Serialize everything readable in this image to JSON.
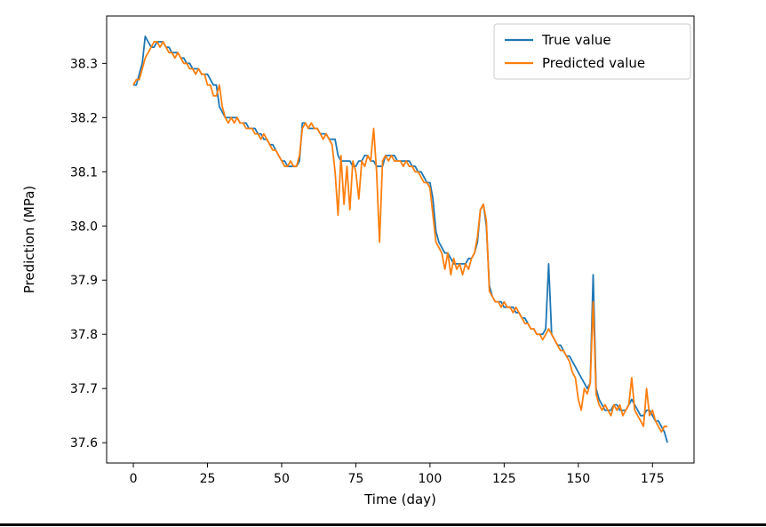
{
  "figure": {
    "background": "#ffffff",
    "xlabel": "Time (day)",
    "ylabel": "Prediction (MPa)"
  },
  "chart_data": {
    "type": "line",
    "title": "",
    "xlabel": "Time (day)",
    "ylabel": "Prediction (MPa)",
    "xlim": [
      -9,
      189
    ],
    "ylim": [
      37.5625,
      38.3875
    ],
    "xticks": [
      0,
      25,
      50,
      75,
      100,
      125,
      150,
      175
    ],
    "yticks": [
      37.6,
      37.7,
      37.8,
      37.9,
      38.0,
      38.1,
      38.2,
      38.3
    ],
    "grid": false,
    "legend_position": "upper right",
    "x": [
      0,
      1,
      2,
      3,
      4,
      5,
      6,
      7,
      8,
      9,
      10,
      11,
      12,
      13,
      14,
      15,
      16,
      17,
      18,
      19,
      20,
      21,
      22,
      23,
      24,
      25,
      26,
      27,
      28,
      29,
      30,
      31,
      32,
      33,
      34,
      35,
      36,
      37,
      38,
      39,
      40,
      41,
      42,
      43,
      44,
      45,
      46,
      47,
      48,
      49,
      50,
      51,
      52,
      53,
      54,
      55,
      56,
      57,
      58,
      59,
      60,
      61,
      62,
      63,
      64,
      65,
      66,
      67,
      68,
      69,
      70,
      71,
      72,
      73,
      74,
      75,
      76,
      77,
      78,
      79,
      80,
      81,
      82,
      83,
      84,
      85,
      86,
      87,
      88,
      89,
      90,
      91,
      92,
      93,
      94,
      95,
      96,
      97,
      98,
      99,
      100,
      101,
      102,
      103,
      104,
      105,
      106,
      107,
      108,
      109,
      110,
      111,
      112,
      113,
      114,
      115,
      116,
      117,
      118,
      119,
      120,
      121,
      122,
      123,
      124,
      125,
      126,
      127,
      128,
      129,
      130,
      131,
      132,
      133,
      134,
      135,
      136,
      137,
      138,
      139,
      140,
      141,
      142,
      143,
      144,
      145,
      146,
      147,
      148,
      149,
      150,
      151,
      152,
      153,
      154,
      155,
      156,
      157,
      158,
      159,
      160,
      161,
      162,
      163,
      164,
      165,
      166,
      167,
      168,
      169,
      170,
      171,
      172,
      173,
      174,
      175,
      176,
      177,
      178,
      179,
      180
    ],
    "series": [
      {
        "name": "True value",
        "color": "#1f77b4",
        "values": [
          38.26,
          38.26,
          38.28,
          38.3,
          38.35,
          38.34,
          38.33,
          38.33,
          38.34,
          38.34,
          38.34,
          38.33,
          38.33,
          38.32,
          38.32,
          38.32,
          38.31,
          38.31,
          38.3,
          38.3,
          38.29,
          38.29,
          38.29,
          38.28,
          38.28,
          38.28,
          38.27,
          38.26,
          38.26,
          38.22,
          38.21,
          38.2,
          38.2,
          38.2,
          38.2,
          38.2,
          38.19,
          38.19,
          38.19,
          38.18,
          38.18,
          38.18,
          38.17,
          38.17,
          38.16,
          38.16,
          38.15,
          38.15,
          38.14,
          38.13,
          38.12,
          38.12,
          38.11,
          38.11,
          38.11,
          38.11,
          38.12,
          38.19,
          38.19,
          38.18,
          38.18,
          38.18,
          38.18,
          38.17,
          38.17,
          38.17,
          38.16,
          38.16,
          38.16,
          38.13,
          38.12,
          38.12,
          38.12,
          38.12,
          38.11,
          38.11,
          38.12,
          38.12,
          38.13,
          38.13,
          38.12,
          38.12,
          38.11,
          38.11,
          38.11,
          38.13,
          38.13,
          38.13,
          38.13,
          38.12,
          38.12,
          38.12,
          38.12,
          38.12,
          38.11,
          38.11,
          38.1,
          38.1,
          38.09,
          38.08,
          38.08,
          38.05,
          37.99,
          37.97,
          37.96,
          37.95,
          37.95,
          37.94,
          37.93,
          37.93,
          37.93,
          37.93,
          37.93,
          37.94,
          37.94,
          37.95,
          37.97,
          38.03,
          38.04,
          38.0,
          37.89,
          37.87,
          37.86,
          37.86,
          37.86,
          37.85,
          37.85,
          37.85,
          37.85,
          37.84,
          37.84,
          37.83,
          37.83,
          37.82,
          37.81,
          37.81,
          37.8,
          37.8,
          37.8,
          37.81,
          37.93,
          37.8,
          37.79,
          37.78,
          37.78,
          37.77,
          37.76,
          37.76,
          37.75,
          37.74,
          37.73,
          37.72,
          37.71,
          37.7,
          37.71,
          37.91,
          37.7,
          37.68,
          37.67,
          37.66,
          37.66,
          37.66,
          37.67,
          37.67,
          37.66,
          37.66,
          37.66,
          37.67,
          37.68,
          37.67,
          37.66,
          37.65,
          37.65,
          37.66,
          37.66,
          37.65,
          37.64,
          37.64,
          37.63,
          37.62,
          37.6
        ]
      },
      {
        "name": "Predicted value",
        "color": "#ff7f0e",
        "values": [
          38.26,
          38.27,
          38.27,
          38.29,
          38.31,
          38.32,
          38.33,
          38.34,
          38.34,
          38.33,
          38.34,
          38.33,
          38.32,
          38.32,
          38.31,
          38.32,
          38.31,
          38.3,
          38.3,
          38.29,
          38.29,
          38.28,
          38.29,
          38.28,
          38.28,
          38.26,
          38.26,
          38.24,
          38.24,
          38.26,
          38.22,
          38.2,
          38.19,
          38.2,
          38.19,
          38.2,
          38.19,
          38.19,
          38.18,
          38.18,
          38.18,
          38.17,
          38.17,
          38.16,
          38.17,
          38.16,
          38.15,
          38.14,
          38.14,
          38.13,
          38.12,
          38.11,
          38.11,
          38.12,
          38.11,
          38.11,
          38.13,
          38.18,
          38.19,
          38.18,
          38.19,
          38.18,
          38.18,
          38.17,
          38.16,
          38.17,
          38.16,
          38.15,
          38.1,
          38.02,
          38.13,
          38.04,
          38.11,
          38.03,
          38.12,
          38.1,
          38.05,
          38.12,
          38.11,
          38.13,
          38.12,
          38.18,
          38.1,
          37.97,
          38.12,
          38.13,
          38.12,
          38.13,
          38.12,
          38.12,
          38.12,
          38.11,
          38.12,
          38.11,
          38.11,
          38.1,
          38.1,
          38.09,
          38.08,
          38.08,
          38.07,
          38.02,
          37.97,
          37.96,
          37.95,
          37.92,
          37.95,
          37.91,
          37.94,
          37.92,
          37.93,
          37.91,
          37.93,
          37.92,
          37.94,
          37.95,
          37.98,
          38.03,
          38.04,
          38.01,
          37.88,
          37.87,
          37.86,
          37.86,
          37.85,
          37.86,
          37.85,
          37.85,
          37.84,
          37.85,
          37.84,
          37.83,
          37.82,
          37.82,
          37.81,
          37.81,
          37.8,
          37.8,
          37.79,
          37.8,
          37.81,
          37.8,
          37.79,
          37.78,
          37.77,
          37.77,
          37.76,
          37.75,
          37.73,
          37.72,
          37.68,
          37.66,
          37.7,
          37.69,
          37.71,
          37.86,
          37.69,
          37.67,
          37.66,
          37.67,
          37.66,
          37.65,
          37.67,
          37.66,
          37.67,
          37.65,
          37.66,
          37.67,
          37.72,
          37.66,
          37.65,
          37.64,
          37.63,
          37.7,
          37.65,
          37.66,
          37.64,
          37.63,
          37.62,
          37.63,
          37.63
        ]
      }
    ],
    "legend": [
      "True value",
      "Predicted value"
    ]
  }
}
